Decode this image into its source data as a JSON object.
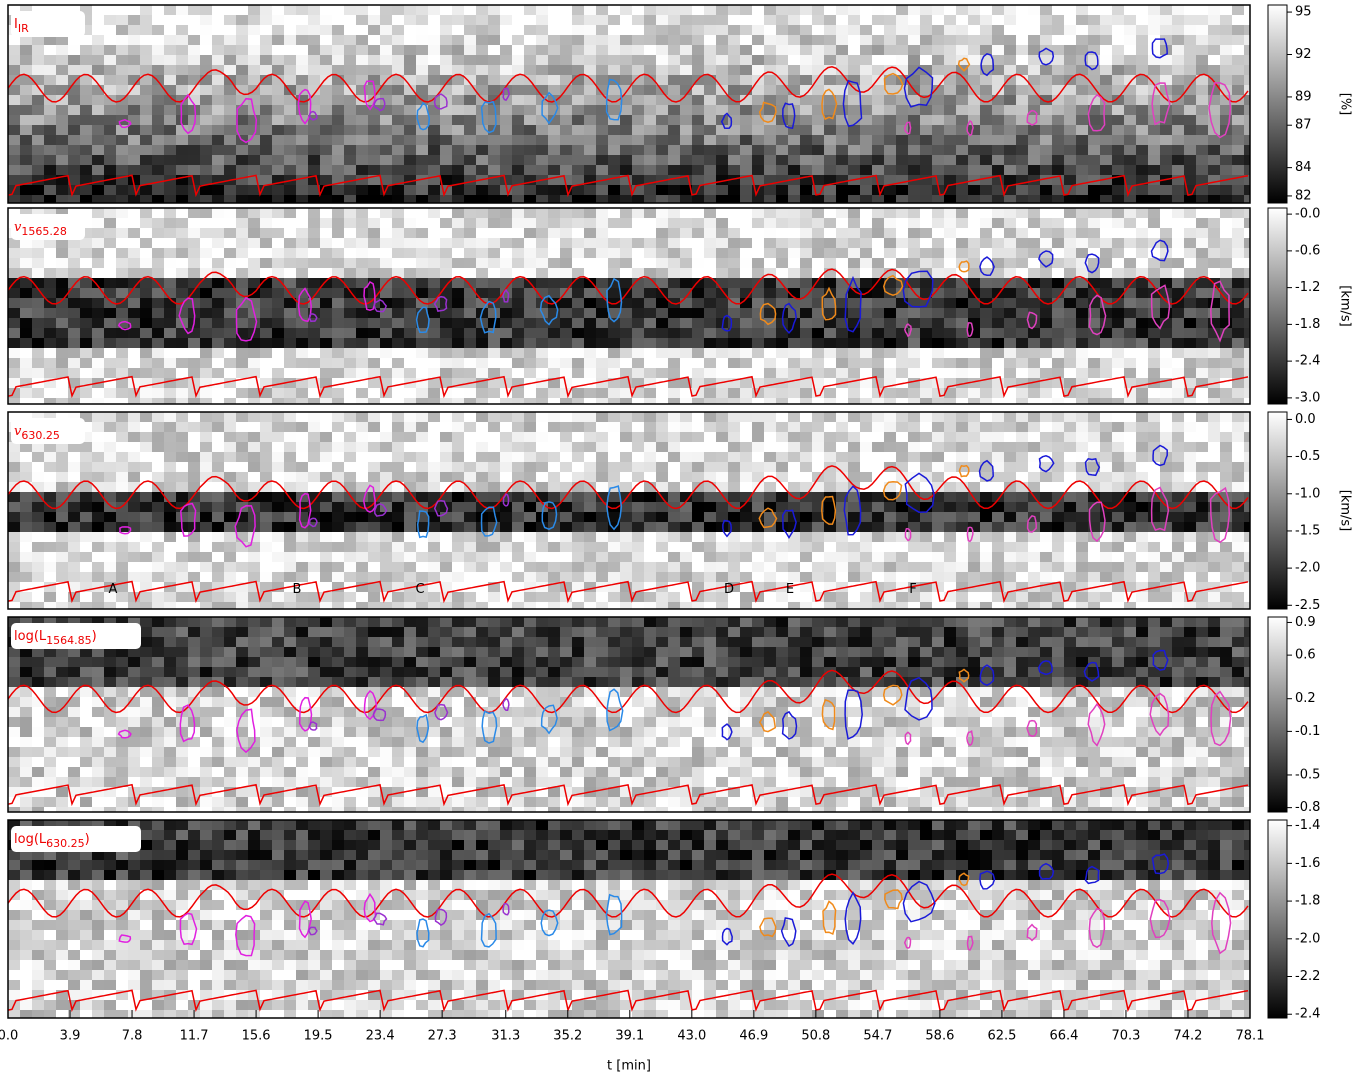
{
  "chart_data": [
    {
      "type": "heatmap",
      "title": "I",
      "title_sub": "IR",
      "colorbar_label": "[%]",
      "ylim": [
        81.5,
        95.5
      ],
      "yticks": [
        82,
        84,
        87,
        89,
        92,
        95
      ]
    },
    {
      "type": "heatmap",
      "title": "v",
      "title_sub": "1565.28",
      "colorbar_label": "[km/s]",
      "ylim": [
        -3.1,
        0.1
      ],
      "yticks": [
        {
          "value": 0,
          "label": "-0.0"
        },
        -0.6,
        -1.2,
        -1.8,
        -2.4,
        {
          "value": -3,
          "label": "-3.0"
        }
      ]
    },
    {
      "type": "heatmap",
      "title": "v",
      "title_sub": "630.25",
      "colorbar_label": "[km/s]",
      "ylim": [
        -2.55,
        0.1
      ],
      "yticks": [
        {
          "value": 0,
          "label": "0.0"
        },
        -0.5,
        {
          "value": -1,
          "label": "-1.0"
        },
        -1.5,
        {
          "value": -2,
          "label": "-2.0"
        },
        -2.5
      ],
      "annotations": [
        {
          "text": "A",
          "color": "#e020e0"
        },
        {
          "text": "B",
          "color": "#9a30d0"
        },
        {
          "text": "C",
          "color": "#2a8ae8"
        },
        {
          "text": "D",
          "color": "#1a1ad8"
        },
        {
          "text": "E",
          "color": "#f08a1a"
        },
        {
          "text": "F",
          "color": "#e040c0"
        }
      ]
    },
    {
      "type": "heatmap",
      "title": "log(L",
      "title_sub": "1564.85",
      "title_end": ")",
      "ylim": [
        -0.84,
        0.95
      ],
      "yticks": [
        0.9,
        0.6,
        0.2,
        -0.1,
        -0.5,
        -0.8
      ]
    },
    {
      "type": "heatmap",
      "title": "log(L",
      "title_sub": "630.25",
      "title_end": ")",
      "ylim": [
        -2.42,
        -1.37
      ],
      "yticks": [
        -1.4,
        -1.6,
        -1.8,
        {
          "value": -2,
          "label": "-2.0"
        },
        -2.2,
        -2.4
      ],
      "xlabel": "t [min]",
      "xlim": [
        0,
        78.1
      ],
      "xticks": [
        {
          "value": 0,
          "label": "0.0"
        },
        3.9,
        7.8,
        11.7,
        15.6,
        19.5,
        23.4,
        27.3,
        31.3,
        35.2,
        39.1,
        {
          "value": 43,
          "label": "43.0"
        },
        46.9,
        50.8,
        54.7,
        58.6,
        62.5,
        66.4,
        70.3,
        74.2,
        78.1
      ]
    }
  ]
}
